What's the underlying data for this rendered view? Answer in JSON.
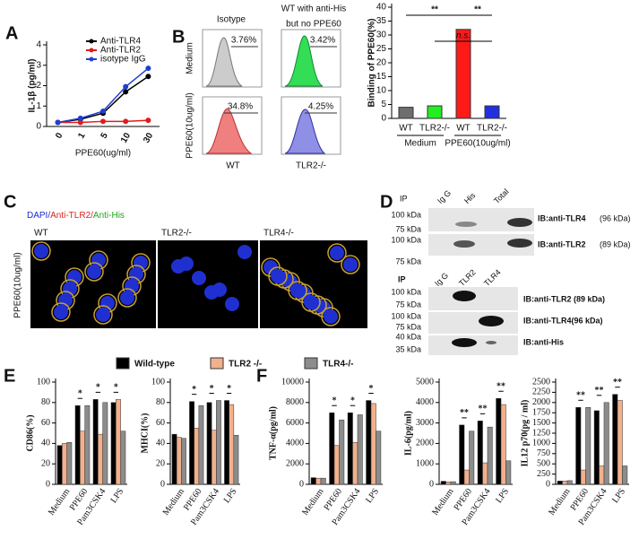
{
  "panel_labels": [
    "A",
    "B",
    "C",
    "D",
    "E",
    "F"
  ],
  "chart_data": [
    {
      "type": "line",
      "ylabel": "IL-1β (pg/ml)",
      "xlabel": "PPE60(ug/ml)",
      "categories": [
        "0",
        "1",
        "5",
        "10",
        "30"
      ],
      "series": [
        {
          "name": "Anti-TLR4",
          "color": "#000000",
          "values": [
            0.2,
            0.35,
            0.65,
            1.7,
            2.45
          ]
        },
        {
          "name": "Anti-TLR2",
          "color": "#e41a1c",
          "values": [
            0.2,
            0.2,
            0.25,
            0.25,
            0.3
          ]
        },
        {
          "name": "isotype IgG",
          "color": "#1f3fcf",
          "values": [
            0.2,
            0.4,
            0.75,
            1.95,
            2.85
          ]
        }
      ],
      "ylim": [
        0,
        4
      ],
      "yticks": [
        0,
        1,
        2,
        3,
        4
      ]
    },
    {
      "type": "bar",
      "ylabel": "Binding of PPE60(%)",
      "categories": [
        "WT",
        "TLR2-/-",
        "WT",
        "TLR2-/-"
      ],
      "groups": [
        "Medium",
        "PPE60(10ug/ml)"
      ],
      "values": [
        4,
        4.5,
        32,
        4.5
      ],
      "colors": [
        "#6e6e6e",
        "#22ee22",
        "#ff1a1a",
        "#2030e0"
      ],
      "annotations": [
        "**",
        "**",
        "n.s."
      ],
      "ylim": [
        0,
        40
      ],
      "yticks": [
        0,
        5,
        10,
        15,
        20,
        25,
        30,
        35,
        40
      ]
    },
    {
      "type": "grouped-bar",
      "ylabel": "CD86(%)",
      "categories": [
        "Medium",
        "PPE60",
        "Pam3CSK4",
        "LPS"
      ],
      "series": [
        {
          "name": "Wild-type",
          "color": "#000000",
          "values": [
            38,
            77,
            83,
            80
          ]
        },
        {
          "name": "TLR2 -/-",
          "color": "#f2b08c",
          "values": [
            40,
            52,
            49,
            83
          ]
        },
        {
          "name": "TLR4-/-",
          "color": "#8c8c8c",
          "values": [
            41,
            77,
            80,
            52
          ]
        }
      ],
      "annotations": [
        "*",
        "*",
        "*"
      ],
      "ylim": [
        0,
        100
      ],
      "yticks": [
        0,
        20,
        40,
        60,
        80,
        100
      ]
    },
    {
      "type": "grouped-bar",
      "ylabel": "MHCI(%)",
      "categories": [
        "Medium",
        "PPE60",
        "Pam3CSK4",
        "LPS"
      ],
      "series": [
        {
          "color": "#000000",
          "values": [
            49,
            81,
            80,
            82
          ]
        },
        {
          "color": "#f2b08c",
          "values": [
            46,
            55,
            53,
            78
          ]
        },
        {
          "color": "#8c8c8c",
          "values": [
            45,
            77,
            82,
            48
          ]
        }
      ],
      "annotations": [
        "*",
        "*",
        "*"
      ],
      "ylim": [
        0,
        100
      ],
      "yticks": [
        0,
        20,
        40,
        60,
        80,
        100
      ]
    },
    {
      "type": "grouped-bar",
      "ylabel": "TNF-α(pg/ml)",
      "categories": [
        "Medium",
        "PPE60",
        "Pam3CSK4",
        "LPS"
      ],
      "series": [
        {
          "color": "#000000",
          "values": [
            650,
            7000,
            7000,
            8200
          ]
        },
        {
          "color": "#f2b08c",
          "values": [
            600,
            3800,
            4100,
            7900
          ]
        },
        {
          "color": "#8c8c8c",
          "values": [
            600,
            6300,
            6800,
            5200
          ]
        }
      ],
      "annotations": [
        "*",
        "*",
        "*"
      ],
      "ylim": [
        0,
        10000
      ],
      "yticks": [
        0,
        2000,
        4000,
        6000,
        8000,
        10000
      ]
    },
    {
      "type": "grouped-bar",
      "ylabel": "IL-6(pg/ml)",
      "categories": [
        "Medium",
        "PPE60",
        "Pam3CSK4",
        "LPS"
      ],
      "series": [
        {
          "color": "#000000",
          "values": [
            150,
            2900,
            3100,
            4200
          ]
        },
        {
          "color": "#f2b08c",
          "values": [
            120,
            700,
            1050,
            3900
          ]
        },
        {
          "color": "#8c8c8c",
          "values": [
            130,
            2600,
            2800,
            1150
          ]
        }
      ],
      "annotations": [
        "**",
        "**",
        "**"
      ],
      "ylim": [
        0,
        5000
      ],
      "yticks": [
        0,
        1000,
        2000,
        3000,
        4000,
        5000
      ]
    },
    {
      "type": "grouped-bar",
      "ylabel": "IL12 p70(pg / ml)",
      "categories": [
        "Medium",
        "PPE60",
        "Pam3CSK4",
        "LPS"
      ],
      "series": [
        {
          "color": "#000000",
          "values": [
            80,
            1880,
            1800,
            2200
          ]
        },
        {
          "color": "#f2b08c",
          "values": [
            80,
            350,
            450,
            2050
          ]
        },
        {
          "color": "#8c8c8c",
          "values": [
            90,
            1880,
            2000,
            450
          ]
        }
      ],
      "annotations": [
        "**",
        "**",
        "**"
      ],
      "ylim": [
        0,
        2500
      ],
      "yticks": [
        0,
        250,
        500,
        750,
        1000,
        1250,
        1500,
        1750,
        2000,
        2250,
        2500
      ]
    }
  ],
  "flow": {
    "column_titles": [
      "Isotype",
      "WT with anti-His",
      "but no PPE60"
    ],
    "row_labels": [
      "Medium",
      "PPE60(10ug/ml)"
    ],
    "gates": [
      "3.76%",
      "3.42%",
      "34.8%",
      "4.25%"
    ],
    "column_labels": [
      "WT",
      "TLR2-/-"
    ]
  },
  "microscopy": {
    "stain": [
      "DAPI/",
      "Anti-TLR2/",
      "Anti-His"
    ],
    "panels": [
      "WT",
      "TLR2-/-",
      "TLR4-/-"
    ],
    "row_label": "PPE60(10ug/ml)"
  },
  "blot_top": {
    "ip": "IP",
    "lanes": [
      "Ig G",
      "His",
      "Total"
    ],
    "markers": [
      "100 kDa",
      "75 kDa",
      "100 kDa",
      "75 kDa"
    ],
    "ib": [
      "IB:anti-TLR4",
      "IB:anti-TLR2"
    ],
    "sizes": [
      "(96 kDa)",
      "(89 kDa)"
    ]
  },
  "blot_bottom": {
    "ip": "IP",
    "lanes": [
      "Ig G",
      "TLR2",
      "TLR4"
    ],
    "markers": [
      "100 kDa",
      "75 kDa",
      "100 kDa",
      "75 kDa",
      "40 kDa",
      "35 kDa"
    ],
    "ib": [
      "IB:anti-TLR2 (89 kDa)",
      "IB:anti-TLR4(96 kDa)",
      "IB:anti-His"
    ]
  }
}
